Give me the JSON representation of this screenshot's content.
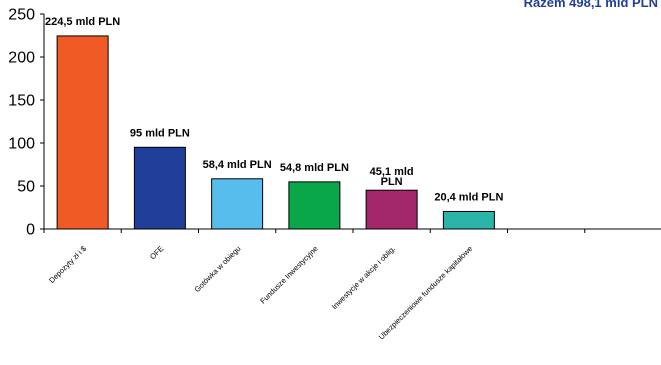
{
  "chart_data": {
    "type": "bar",
    "title": "Razem 498,1 mld PLN",
    "categories": [
      "Depozyty zł i $",
      "OFE",
      "Gotówka w obiegu",
      "Fundusze Inwestycyjne",
      "Inwestycje w akcje i oblig.",
      "Ubezpieczeniowe fundusze kapitałowe",
      "",
      ""
    ],
    "values": [
      224.5,
      95,
      58.4,
      54.8,
      45.1,
      20.4,
      null,
      null
    ],
    "data_labels": [
      [
        "224,5 mld PLN"
      ],
      [
        "95 mld PLN"
      ],
      [
        "58,4 mld PLN"
      ],
      [
        "54,8 mld PLN"
      ],
      [
        "45,1 mld",
        "PLN"
      ],
      [
        "20,4 mld PLN"
      ],
      [],
      []
    ],
    "colors": [
      "#f05a24",
      "#1f3f9a",
      "#56bdec",
      "#0aa64a",
      "#a3286a",
      "#2bb5a8",
      "#ffffff",
      "#ffffff"
    ],
    "yticks": [
      0,
      50,
      100,
      150,
      200,
      250
    ],
    "ylim": [
      0,
      250
    ],
    "xlabel": "",
    "ylabel": "",
    "grid": false,
    "legend": "none"
  }
}
